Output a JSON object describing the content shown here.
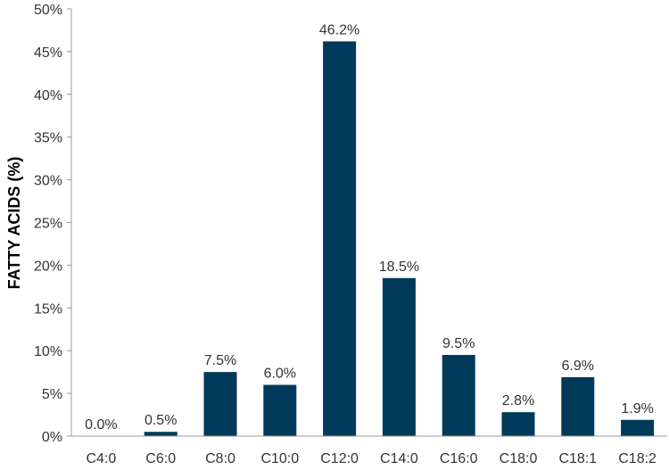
{
  "chart_data": {
    "type": "bar",
    "title": "",
    "xlabel": "",
    "ylabel": "FATTY ACIDS (%)",
    "categories": [
      "C4:0",
      "C6:0",
      "C8:0",
      "C10:0",
      "C12:0",
      "C14:0",
      "C16:0",
      "C18:0",
      "C18:1",
      "C18:2"
    ],
    "values": [
      0.0,
      0.5,
      7.5,
      6.0,
      46.2,
      18.5,
      9.5,
      2.8,
      6.9,
      1.9
    ],
    "data_labels": [
      "0.0%",
      "0.5%",
      "7.5%",
      "6.0%",
      "46.2%",
      "18.5%",
      "9.5%",
      "2.8%",
      "6.9%",
      "1.9%"
    ],
    "ylim": [
      0,
      50
    ],
    "yticks": [
      0,
      5,
      10,
      15,
      20,
      25,
      30,
      35,
      40,
      45,
      50
    ],
    "ytick_labels": [
      "0%",
      "5%",
      "10%",
      "15%",
      "20%",
      "25%",
      "30%",
      "35%",
      "40%",
      "45%",
      "50%"
    ],
    "bar_color": "#003a5a",
    "axis_color": "#999999",
    "grid": false,
    "legend": "none"
  }
}
